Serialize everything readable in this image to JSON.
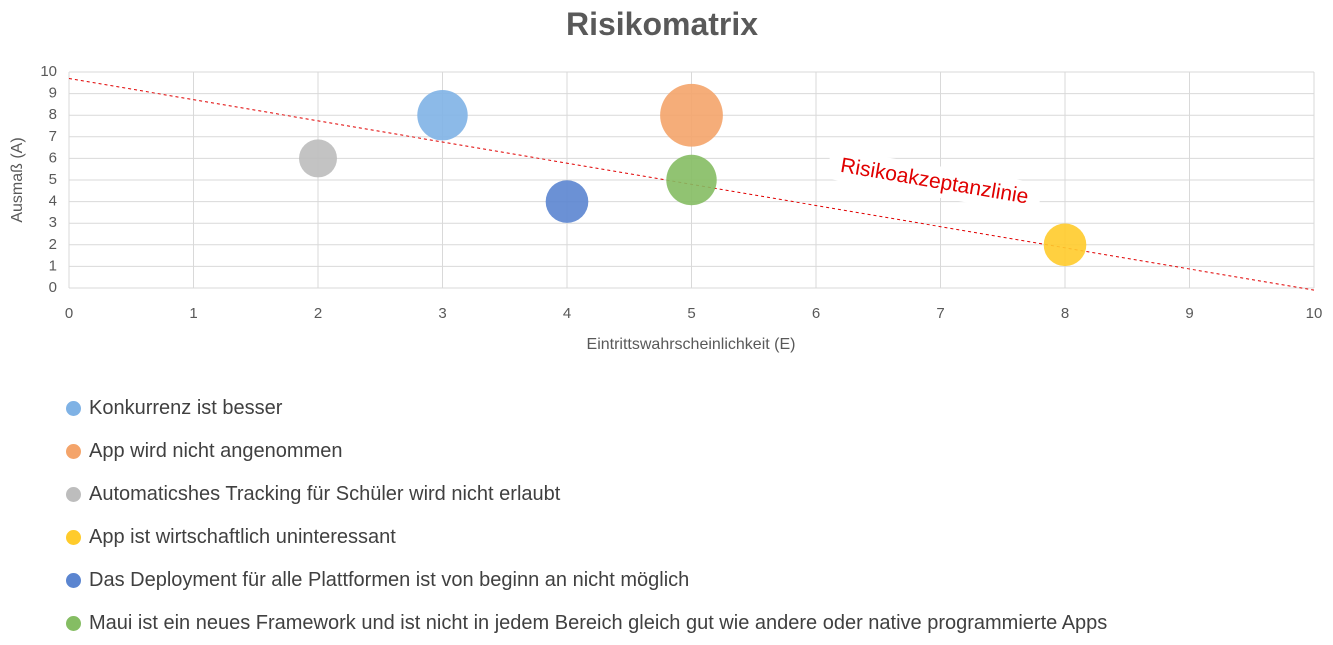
{
  "chart_data": {
    "type": "scatter",
    "title": "Risikomatrix",
    "xlabel": "Eintrittswahrscheinlichkeit (E)",
    "ylabel": "Ausmaß (A)",
    "xlim": [
      0,
      10
    ],
    "ylim": [
      0,
      10
    ],
    "xticks": [
      "0",
      "1",
      "2",
      "3",
      "4",
      "5",
      "6",
      "7",
      "8",
      "9",
      "10"
    ],
    "yticks": [
      "0",
      "1",
      "2",
      "3",
      "4",
      "5",
      "6",
      "7",
      "8",
      "9",
      "10"
    ],
    "grid": true,
    "legend_position": "bottom",
    "series": [
      {
        "name": "Konkurrenz ist besser",
        "x": 3,
        "y": 8,
        "size": 3,
        "color": "#7fb2e5"
      },
      {
        "name": "App wird nicht angenommen",
        "x": 5,
        "y": 8,
        "size": 5,
        "color": "#f4a46a"
      },
      {
        "name": "Automaticshes Tracking für Schüler wird nicht erlaubt",
        "x": 2,
        "y": 6,
        "size": 1.5,
        "color": "#bdbdbd"
      },
      {
        "name": "App ist wirtschaftlich uninteressant",
        "x": 8,
        "y": 2,
        "size": 2,
        "color": "#ffcb2b"
      },
      {
        "name": "Das Deployment für alle Plattformen ist von beginn an nicht möglich",
        "x": 4,
        "y": 4,
        "size": 2,
        "color": "#5b85d0"
      },
      {
        "name": "Maui ist ein neues Framework und ist nicht in jedem Bereich gleich gut wie andere oder native programmierte Apps",
        "x": 5,
        "y": 5,
        "size": 3,
        "color": "#85bd63"
      }
    ],
    "reference_line": {
      "x": [
        0,
        10
      ],
      "y": [
        9.7,
        -0.1
      ],
      "color": "#e00000",
      "style": "dashed"
    },
    "annotation": {
      "text": "Risikoakzeptanzlinie",
      "x": 6.95,
      "y": 4.9
    }
  }
}
